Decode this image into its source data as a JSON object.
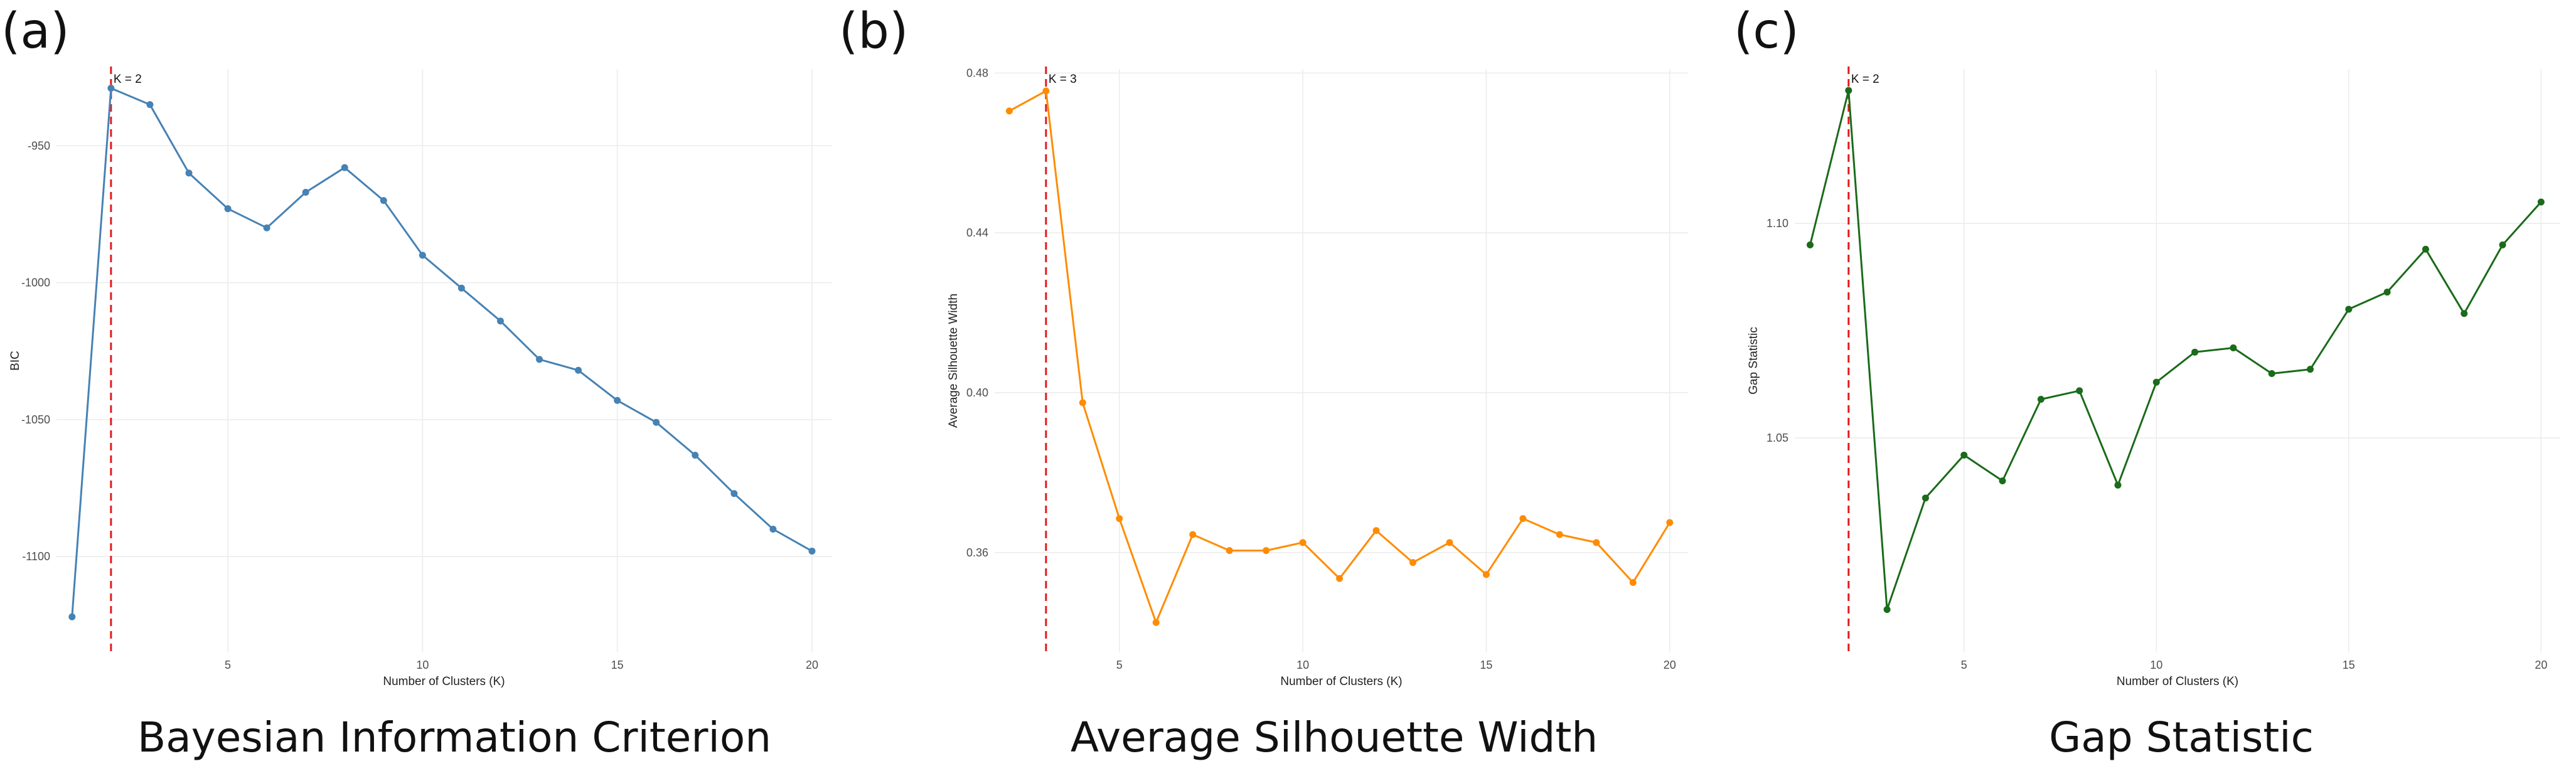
{
  "panels": [
    {
      "letter": "(a)",
      "caption": "Bayesian Information Criterion",
      "annotation": "K = 2"
    },
    {
      "letter": "(b)",
      "caption": "Average Silhouette Width",
      "annotation": "K = 3"
    },
    {
      "letter": "(c)",
      "caption": "Gap Statistic",
      "annotation": "K = 2"
    }
  ],
  "chart_data": [
    {
      "type": "line",
      "xlabel": "Number of Clusters (K)",
      "ylabel": "BIC",
      "x": [
        1,
        2,
        3,
        4,
        5,
        6,
        7,
        8,
        9,
        10,
        11,
        12,
        13,
        14,
        15,
        16,
        17,
        18,
        19,
        20
      ],
      "series": [
        {
          "values": [
            -1122,
            -929,
            -935,
            -960,
            -973,
            -980,
            -967,
            -958,
            -970,
            -990,
            -1002,
            -1014,
            -1028,
            -1032,
            -1043,
            -1051,
            -1063,
            -1077,
            -1090,
            -1098
          ],
          "color": "#4682b4"
        }
      ],
      "xlim": [
        0.6,
        20.5
      ],
      "ylim": [
        -1135,
        -922
      ],
      "xticks": [
        5,
        10,
        15,
        20
      ],
      "yticks": [
        -950,
        -1000,
        -1050,
        -1100
      ],
      "vline_x": 2,
      "vline_color": "#e31a1c",
      "grid": true,
      "legend": "none"
    },
    {
      "type": "line",
      "xlabel": "Number of Clusters (K)",
      "ylabel": "Average Silhouette Width",
      "x": [
        2,
        3,
        4,
        5,
        6,
        7,
        8,
        9,
        10,
        11,
        12,
        13,
        14,
        15,
        16,
        17,
        18,
        19,
        20
      ],
      "series": [
        {
          "values": [
            0.4705,
            0.4755,
            0.3975,
            0.3685,
            0.3425,
            0.3645,
            0.3605,
            0.3605,
            0.3625,
            0.3535,
            0.3655,
            0.3575,
            0.3625,
            0.3545,
            0.3685,
            0.3645,
            0.3625,
            0.3525,
            0.3675
          ],
          "color": "#ff8c00"
        }
      ],
      "xlim": [
        1.6,
        20.5
      ],
      "ylim": [
        0.335,
        0.481
      ],
      "xticks": [
        5,
        10,
        15,
        20
      ],
      "yticks": [
        0.36,
        0.4,
        0.44,
        0.48
      ],
      "vline_x": 3,
      "vline_color": "#e31a1c",
      "grid": true,
      "legend": "none"
    },
    {
      "type": "line",
      "xlabel": "Number of Clusters (K)",
      "ylabel": "Gap Statistic",
      "x": [
        1,
        2,
        3,
        4,
        5,
        6,
        7,
        8,
        9,
        10,
        11,
        12,
        13,
        14,
        15,
        16,
        17,
        18,
        19,
        20
      ],
      "series": [
        {
          "values": [
            1.095,
            1.131,
            1.01,
            1.036,
            1.046,
            1.04,
            1.059,
            1.061,
            1.039,
            1.063,
            1.07,
            1.071,
            1.065,
            1.066,
            1.08,
            1.084,
            1.094,
            1.079,
            1.095,
            1.105
          ],
          "color": "#1a6b1a"
        }
      ],
      "xlim": [
        0.6,
        20.5
      ],
      "ylim": [
        1.0,
        1.136
      ],
      "xticks": [
        5,
        10,
        15,
        20
      ],
      "yticks": [
        1.05,
        1.1
      ],
      "vline_x": 2,
      "vline_color": "#e31a1c",
      "grid": true,
      "legend": "none"
    }
  ]
}
